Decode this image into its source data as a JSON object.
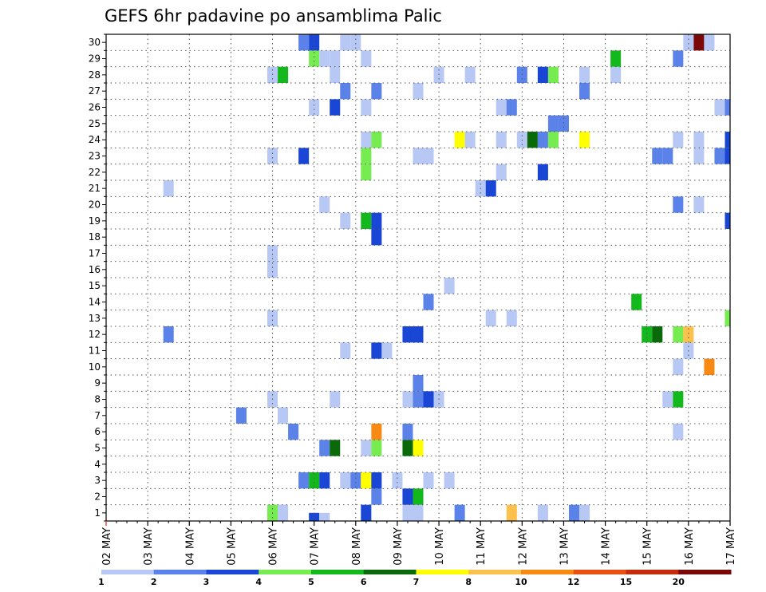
{
  "chart_data": {
    "type": "heatmap",
    "title": "GEFS 6hr padavine po ansamblima Palic",
    "y_categories": [
      "1",
      "2",
      "3",
      "4",
      "5",
      "6",
      "7",
      "8",
      "9",
      "10",
      "11",
      "12",
      "13",
      "14",
      "15",
      "16",
      "17",
      "18",
      "19",
      "20",
      "21",
      "22",
      "23",
      "24",
      "25",
      "26",
      "27",
      "28",
      "29",
      "30"
    ],
    "x_tick_labels": [
      "02 MAY",
      "03 MAY",
      "04 MAY",
      "05 MAY",
      "06 MAY",
      "07 MAY",
      "08 MAY",
      "09 MAY",
      "10 MAY",
      "11 MAY",
      "12 MAY",
      "13 MAY",
      "14 MAY",
      "15 MAY",
      "16 MAY",
      "17 MAY"
    ],
    "grid": true,
    "legend": {
      "placement": "bottom",
      "labels": [
        "1",
        "2",
        "3",
        "4",
        "5",
        "6",
        "7",
        "8",
        "10",
        "12",
        "15",
        "20"
      ],
      "colors": [
        "#b8c8f4",
        "#5a82e8",
        "#1a46d6",
        "#76ec50",
        "#12b81c",
        "#0a6a0a",
        "#ffff00",
        "#fcc04c",
        "#f88a14",
        "#e85012",
        "#c42c0a",
        "#7a0808"
      ]
    },
    "values_note": "",
    "cells": [
      {
        "member": 1,
        "x": 4.0,
        "level": 4
      },
      {
        "member": 1,
        "x": 4.25,
        "level": 1
      },
      {
        "member": 1,
        "x": 6.25,
        "level": 3
      },
      {
        "member": 1,
        "x": 7.25,
        "level": 1
      },
      {
        "member": 1,
        "x": 7.5,
        "level": 1
      },
      {
        "member": 1,
        "x": 8.5,
        "level": 2
      },
      {
        "member": 1,
        "x": 9.75,
        "level": 8
      },
      {
        "member": 1,
        "x": 10.5,
        "level": 1
      },
      {
        "member": 1,
        "x": 11.25,
        "level": 2
      },
      {
        "member": 1,
        "x": 11.5,
        "level": 1
      },
      {
        "member": 2,
        "x": 6.5,
        "level": 2
      },
      {
        "member": 2,
        "x": 7.25,
        "level": 3
      },
      {
        "member": 2,
        "x": 7.5,
        "level": 5
      },
      {
        "member": 3,
        "x": 4.75,
        "level": 2
      },
      {
        "member": 3,
        "x": 5.0,
        "level": 5
      },
      {
        "member": 3,
        "x": 5.25,
        "level": 3
      },
      {
        "member": 3,
        "x": 5.75,
        "level": 1
      },
      {
        "member": 3,
        "x": 6.0,
        "level": 2
      },
      {
        "member": 3,
        "x": 6.25,
        "level": 7
      },
      {
        "member": 3,
        "x": 6.5,
        "level": 3
      },
      {
        "member": 3,
        "x": 7.0,
        "level": 1
      },
      {
        "member": 3,
        "x": 7.75,
        "level": 1
      },
      {
        "member": 3,
        "x": 8.25,
        "level": 1
      },
      {
        "member": 5,
        "x": 5.25,
        "level": 2
      },
      {
        "member": 5,
        "x": 5.5,
        "level": 6
      },
      {
        "member": 5,
        "x": 6.25,
        "level": 1
      },
      {
        "member": 5,
        "x": 6.5,
        "level": 4
      },
      {
        "member": 5,
        "x": 7.25,
        "level": 6
      },
      {
        "member": 5,
        "x": 7.5,
        "level": 7
      },
      {
        "member": 6,
        "x": 4.5,
        "level": 2
      },
      {
        "member": 6,
        "x": 6.5,
        "level": 9
      },
      {
        "member": 6,
        "x": 7.25,
        "level": 2
      },
      {
        "member": 6,
        "x": 13.75,
        "level": 1
      },
      {
        "member": 7,
        "x": 3.25,
        "level": 2
      },
      {
        "member": 7,
        "x": 4.25,
        "level": 1
      },
      {
        "member": 8,
        "x": 4.0,
        "level": 1
      },
      {
        "member": 8,
        "x": 5.5,
        "level": 1
      },
      {
        "member": 8,
        "x": 7.25,
        "level": 1
      },
      {
        "member": 8,
        "x": 7.5,
        "level": 2
      },
      {
        "member": 8,
        "x": 7.75,
        "level": 3
      },
      {
        "member": 8,
        "x": 8.0,
        "level": 1
      },
      {
        "member": 8,
        "x": 13.5,
        "level": 1
      },
      {
        "member": 8,
        "x": 13.75,
        "level": 5
      },
      {
        "member": 9,
        "x": 7.5,
        "level": 2
      },
      {
        "member": 10,
        "x": 13.75,
        "level": 1
      },
      {
        "member": 10,
        "x": 14.5,
        "level": 9
      },
      {
        "member": 11,
        "x": 5.75,
        "level": 1
      },
      {
        "member": 11,
        "x": 6.5,
        "level": 3
      },
      {
        "member": 11,
        "x": 6.75,
        "level": 1
      },
      {
        "member": 11,
        "x": 14.0,
        "level": 1
      },
      {
        "member": 12,
        "x": 1.5,
        "level": 2
      },
      {
        "member": 12,
        "x": 7.25,
        "level": 3
      },
      {
        "member": 12,
        "x": 7.5,
        "level": 3
      },
      {
        "member": 12,
        "x": 13.0,
        "level": 5
      },
      {
        "member": 12,
        "x": 13.25,
        "level": 6
      },
      {
        "member": 12,
        "x": 13.75,
        "level": 4
      },
      {
        "member": 12,
        "x": 14.0,
        "level": 8
      },
      {
        "member": 13,
        "x": 4.0,
        "level": 1
      },
      {
        "member": 13,
        "x": 9.25,
        "level": 1
      },
      {
        "member": 13,
        "x": 9.75,
        "level": 1
      },
      {
        "member": 13,
        "x": 15.0,
        "level": 4
      },
      {
        "member": 14,
        "x": 7.75,
        "level": 2
      },
      {
        "member": 14,
        "x": 12.75,
        "level": 5
      },
      {
        "member": 15,
        "x": 8.25,
        "level": 1
      },
      {
        "member": 16,
        "x": 4.0,
        "level": 1
      },
      {
        "member": 17,
        "x": 4.0,
        "level": 1
      },
      {
        "member": 18,
        "x": 6.5,
        "level": 3
      },
      {
        "member": 19,
        "x": 5.75,
        "level": 1
      },
      {
        "member": 19,
        "x": 6.25,
        "level": 5
      },
      {
        "member": 19,
        "x": 6.5,
        "level": 3
      },
      {
        "member": 19,
        "x": 15.0,
        "level": 3
      },
      {
        "member": 20,
        "x": 5.25,
        "level": 1
      },
      {
        "member": 20,
        "x": 13.75,
        "level": 2
      },
      {
        "member": 20,
        "x": 14.25,
        "level": 1
      },
      {
        "member": 21,
        "x": 1.5,
        "level": 1
      },
      {
        "member": 21,
        "x": 9.0,
        "level": 1
      },
      {
        "member": 21,
        "x": 9.25,
        "level": 3
      },
      {
        "member": 22,
        "x": 6.25,
        "level": 4
      },
      {
        "member": 22,
        "x": 9.5,
        "level": 1
      },
      {
        "member": 22,
        "x": 10.5,
        "level": 3
      },
      {
        "member": 23,
        "x": 4.0,
        "level": 1
      },
      {
        "member": 23,
        "x": 4.75,
        "level": 3
      },
      {
        "member": 23,
        "x": 6.25,
        "level": 4
      },
      {
        "member": 23,
        "x": 7.5,
        "level": 1
      },
      {
        "member": 23,
        "x": 7.75,
        "level": 1
      },
      {
        "member": 23,
        "x": 13.25,
        "level": 2
      },
      {
        "member": 23,
        "x": 13.5,
        "level": 2
      },
      {
        "member": 23,
        "x": 14.25,
        "level": 1
      },
      {
        "member": 23,
        "x": 14.75,
        "level": 2
      },
      {
        "member": 23,
        "x": 15.0,
        "level": 3
      },
      {
        "member": 24,
        "x": 6.25,
        "level": 1
      },
      {
        "member": 24,
        "x": 6.5,
        "level": 4
      },
      {
        "member": 24,
        "x": 8.5,
        "level": 7
      },
      {
        "member": 24,
        "x": 8.75,
        "level": 1
      },
      {
        "member": 24,
        "x": 9.5,
        "level": 1
      },
      {
        "member": 24,
        "x": 10.0,
        "level": 1
      },
      {
        "member": 24,
        "x": 10.25,
        "level": 6
      },
      {
        "member": 24,
        "x": 10.5,
        "level": 2
      },
      {
        "member": 24,
        "x": 10.75,
        "level": 4
      },
      {
        "member": 24,
        "x": 11.5,
        "level": 7
      },
      {
        "member": 24,
        "x": 13.75,
        "level": 1
      },
      {
        "member": 24,
        "x": 14.25,
        "level": 1
      },
      {
        "member": 24,
        "x": 15.0,
        "level": 3
      },
      {
        "member": 25,
        "x": 10.75,
        "level": 2
      },
      {
        "member": 25,
        "x": 11.0,
        "level": 2
      },
      {
        "member": 26,
        "x": 5.0,
        "level": 1
      },
      {
        "member": 26,
        "x": 5.5,
        "level": 3
      },
      {
        "member": 26,
        "x": 6.25,
        "level": 1
      },
      {
        "member": 26,
        "x": 9.5,
        "level": 1
      },
      {
        "member": 26,
        "x": 9.75,
        "level": 2
      },
      {
        "member": 26,
        "x": 14.75,
        "level": 1
      },
      {
        "member": 26,
        "x": 15.0,
        "level": 2
      },
      {
        "member": 27,
        "x": 5.75,
        "level": 2
      },
      {
        "member": 27,
        "x": 6.5,
        "level": 2
      },
      {
        "member": 27,
        "x": 7.5,
        "level": 1
      },
      {
        "member": 27,
        "x": 11.5,
        "level": 2
      },
      {
        "member": 28,
        "x": 4.0,
        "level": 1
      },
      {
        "member": 28,
        "x": 4.25,
        "level": 5
      },
      {
        "member": 28,
        "x": 5.5,
        "level": 1
      },
      {
        "member": 28,
        "x": 8.0,
        "level": 1
      },
      {
        "member": 28,
        "x": 8.75,
        "level": 1
      },
      {
        "member": 28,
        "x": 10.0,
        "level": 2
      },
      {
        "member": 28,
        "x": 10.5,
        "level": 3
      },
      {
        "member": 28,
        "x": 10.75,
        "level": 4
      },
      {
        "member": 28,
        "x": 11.5,
        "level": 1
      },
      {
        "member": 28,
        "x": 12.25,
        "level": 1
      },
      {
        "member": 29,
        "x": 5.0,
        "level": 4
      },
      {
        "member": 29,
        "x": 5.25,
        "level": 1
      },
      {
        "member": 29,
        "x": 5.5,
        "level": 1
      },
      {
        "member": 29,
        "x": 6.25,
        "level": 1
      },
      {
        "member": 29,
        "x": 12.25,
        "level": 5
      },
      {
        "member": 29,
        "x": 13.75,
        "level": 2
      },
      {
        "member": 30,
        "x": 4.75,
        "level": 2
      },
      {
        "member": 30,
        "x": 5.0,
        "level": 3
      },
      {
        "member": 30,
        "x": 5.75,
        "level": 1
      },
      {
        "member": 30,
        "x": 6.0,
        "level": 1
      },
      {
        "member": 30,
        "x": 14.0,
        "level": 1
      },
      {
        "member": 30,
        "x": 14.25,
        "level": 12
      },
      {
        "member": 30,
        "x": 14.5,
        "level": 1
      },
      {
        "member": 0.5,
        "x": 5.0,
        "level": 3
      },
      {
        "member": 0.5,
        "x": 5.25,
        "level": 1
      }
    ]
  }
}
